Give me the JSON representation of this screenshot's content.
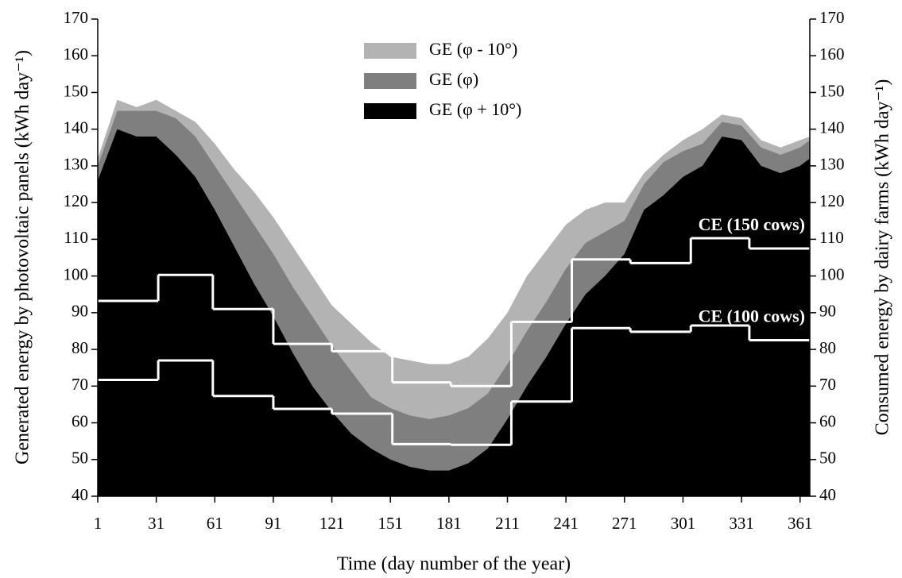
{
  "chart_data": {
    "type": "area-step",
    "xlabel": "Time (day number of the year)",
    "ylabel": "Generated energy by photovoltaic panels (kWh day⁻¹)",
    "y2label": "Consumed energy by dairy farms (kWh day⁻¹)",
    "xlim": [
      1,
      366
    ],
    "ylim": [
      40,
      170
    ],
    "y2lim": [
      40,
      170
    ],
    "xticks": [
      1,
      31,
      61,
      91,
      121,
      151,
      181,
      211,
      241,
      271,
      301,
      331,
      361
    ],
    "yticks": [
      40,
      50,
      60,
      70,
      80,
      90,
      100,
      110,
      120,
      130,
      140,
      150,
      160,
      170
    ],
    "y2ticks": [
      40,
      50,
      60,
      70,
      80,
      90,
      100,
      110,
      120,
      130,
      140,
      150,
      160,
      170
    ],
    "legend": "upper center",
    "areas": {
      "x": [
        1,
        11,
        21,
        31,
        41,
        51,
        61,
        71,
        81,
        91,
        101,
        111,
        121,
        131,
        141,
        151,
        161,
        171,
        181,
        191,
        201,
        211,
        221,
        231,
        241,
        251,
        261,
        271,
        281,
        291,
        301,
        311,
        321,
        331,
        341,
        351,
        361,
        366
      ],
      "series": [
        {
          "name": "GE (φ - 10°)",
          "color": "#b3b3b3",
          "values": [
            132,
            148,
            146,
            148,
            145,
            142,
            136,
            129,
            123,
            116,
            108,
            100,
            92,
            87,
            82,
            78,
            77,
            76,
            76,
            78,
            83,
            90,
            100,
            107,
            114,
            118,
            120,
            120,
            128,
            133,
            137,
            140,
            144,
            143,
            137,
            135,
            137,
            138
          ]
        },
        {
          "name": "GE (φ)",
          "color": "#7f7f7f",
          "values": [
            130,
            145,
            145,
            145,
            143,
            138,
            130,
            122,
            114,
            106,
            97,
            89,
            81,
            74,
            67,
            64,
            62,
            61,
            62,
            64,
            68,
            76,
            85,
            93,
            102,
            109,
            112,
            115,
            125,
            131,
            134,
            136,
            142,
            141,
            135,
            133,
            135,
            137
          ]
        },
        {
          "name": "GE (φ + 10°)",
          "color": "#000000",
          "values": [
            126,
            140,
            138,
            138,
            133,
            127,
            118,
            108,
            98,
            89,
            79,
            70,
            63,
            57,
            53,
            50,
            48,
            47,
            47,
            49,
            53,
            61,
            70,
            78,
            87,
            95,
            100,
            106,
            118,
            122,
            127,
            130,
            138,
            137,
            130,
            128,
            130,
            132
          ]
        }
      ]
    },
    "steps": {
      "x": [
        1,
        32,
        60,
        91,
        121,
        152,
        182,
        213,
        244,
        274,
        305,
        335
      ],
      "series": [
        {
          "name": "CE (150 cows)",
          "color": "#ffffff",
          "axis": "y2",
          "values": [
            93.2,
            100.3,
            91,
            81.5,
            79.5,
            71,
            70,
            87.5,
            104.5,
            103.5,
            110.3,
            107.5
          ]
        },
        {
          "name": "CE (100 cows)",
          "color": "#ffffff",
          "axis": "y2",
          "values": [
            71.7,
            77,
            67.3,
            63.8,
            62.5,
            54.2,
            54,
            65.8,
            85.8,
            84.8,
            86.5,
            82.5
          ]
        }
      ]
    }
  }
}
